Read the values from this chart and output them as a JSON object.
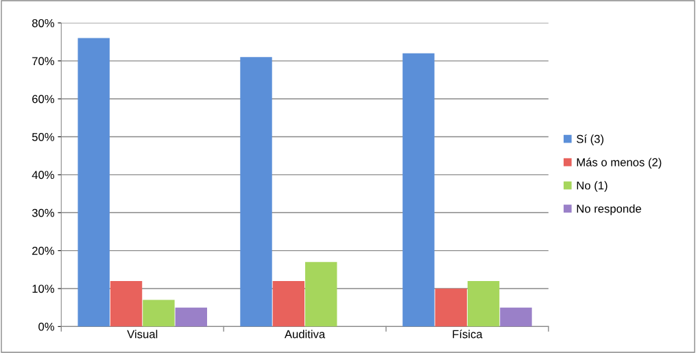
{
  "chart_data": {
    "type": "bar",
    "categories": [
      "Visual",
      "Auditiva",
      "Física"
    ],
    "series": [
      {
        "name": "Sí (3)",
        "color": "#5b8fd8",
        "values": [
          76,
          71,
          72
        ]
      },
      {
        "name": "Más o menos (2)",
        "color": "#e8625c",
        "values": [
          12,
          12,
          10
        ]
      },
      {
        "name": "No (1)",
        "color": "#a6d65c",
        "values": [
          7,
          17,
          12
        ]
      },
      {
        "name": "No responde",
        "color": "#9a80c8",
        "values": [
          5,
          0,
          5
        ]
      }
    ],
    "ylim": [
      0,
      80
    ],
    "yticks": [
      {
        "value": 0,
        "label": "0%"
      },
      {
        "value": 10,
        "label": "10%"
      },
      {
        "value": 20,
        "label": "20%"
      },
      {
        "value": 30,
        "label": "30%"
      },
      {
        "value": 40,
        "label": "40%"
      },
      {
        "value": 50,
        "label": "50%"
      },
      {
        "value": 60,
        "label": "60%"
      },
      {
        "value": 70,
        "label": "70%"
      },
      {
        "value": 80,
        "label": "80%"
      }
    ],
    "grid": "y",
    "legend": "right"
  }
}
